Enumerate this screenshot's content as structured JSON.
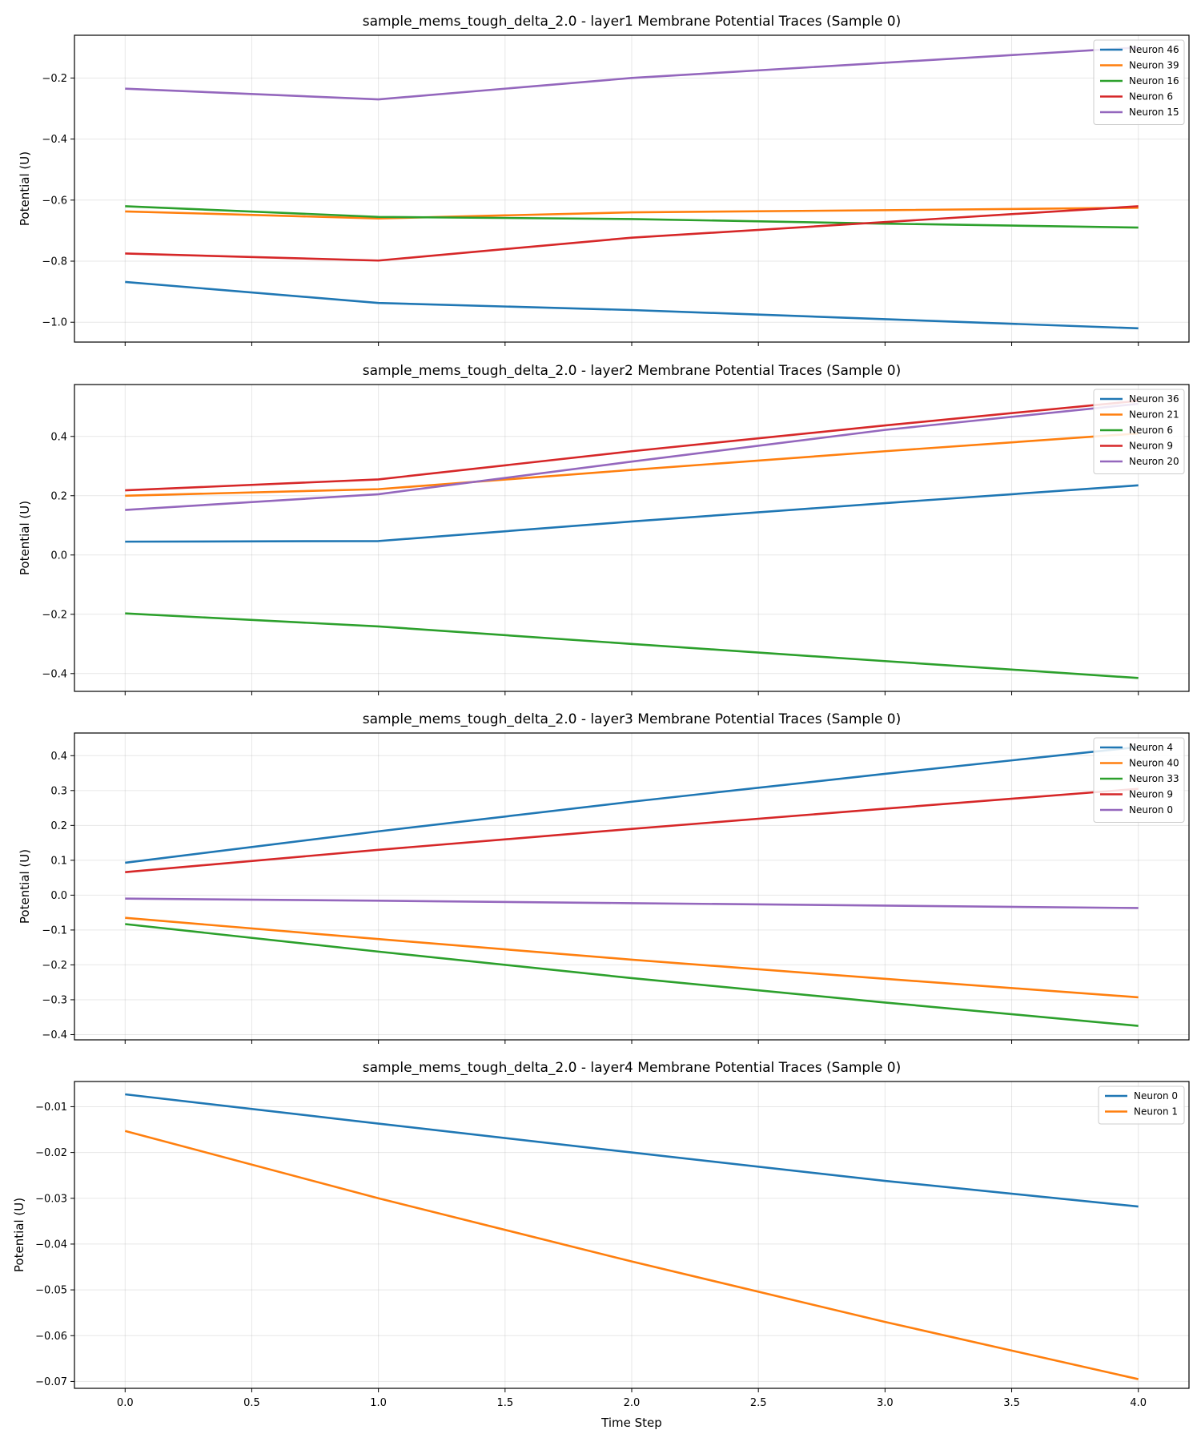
{
  "chart_data": [
    {
      "type": "line",
      "title": "sample_mems_tough_delta_2.0 - layer1 Membrane Potential Traces (Sample 0)",
      "xlabel": "",
      "ylabel": "Potential (U)",
      "xlim": [
        -0.2,
        4.2
      ],
      "ylim": [
        -1.065,
        -0.06
      ],
      "yticks": [
        -1.0,
        -0.8,
        -0.6,
        -0.4,
        -0.2
      ],
      "ytick_labels": [
        "−1.0",
        "−0.8",
        "−0.6",
        "−0.4",
        "−0.2"
      ],
      "xticks": [
        0.0,
        0.5,
        1.0,
        1.5,
        2.0,
        2.5,
        3.0,
        3.5,
        4.0
      ],
      "xtick_labels": [],
      "grid": true,
      "legend_position": "top-right",
      "x": [
        0,
        1,
        2,
        3,
        4
      ],
      "series": [
        {
          "name": "Neuron 46",
          "color": "#1f77b4",
          "values": [
            -0.868,
            -0.937,
            -0.96,
            -0.99,
            -1.02
          ]
        },
        {
          "name": "Neuron 39",
          "color": "#ff7f0e",
          "values": [
            -0.637,
            -0.66,
            -0.64,
            -0.633,
            -0.625
          ]
        },
        {
          "name": "Neuron 16",
          "color": "#2ca02c",
          "values": [
            -0.62,
            -0.655,
            -0.662,
            -0.677,
            -0.69
          ]
        },
        {
          "name": "Neuron 6",
          "color": "#d62728",
          "values": [
            -0.775,
            -0.798,
            -0.723,
            -0.672,
            -0.62
          ]
        },
        {
          "name": "Neuron 15",
          "color": "#9467bd",
          "values": [
            -0.235,
            -0.27,
            -0.2,
            -0.15,
            -0.1
          ]
        }
      ]
    },
    {
      "type": "line",
      "title": "sample_mems_tough_delta_2.0 - layer2 Membrane Potential Traces (Sample 0)",
      "xlabel": "",
      "ylabel": "Potential (U)",
      "xlim": [
        -0.2,
        4.2
      ],
      "ylim": [
        -0.46,
        0.575
      ],
      "yticks": [
        -0.4,
        -0.2,
        0.0,
        0.2,
        0.4
      ],
      "ytick_labels": [
        "−0.4",
        "−0.2",
        "0.0",
        "0.2",
        "0.4"
      ],
      "xticks": [
        0.0,
        0.5,
        1.0,
        1.5,
        2.0,
        2.5,
        3.0,
        3.5,
        4.0
      ],
      "xtick_labels": [],
      "grid": true,
      "legend_position": "top-right",
      "x": [
        0,
        1,
        2,
        3,
        4
      ],
      "series": [
        {
          "name": "Neuron 36",
          "color": "#1f77b4",
          "values": [
            0.045,
            0.047,
            0.113,
            0.175,
            0.235
          ]
        },
        {
          "name": "Neuron 21",
          "color": "#ff7f0e",
          "values": [
            0.2,
            0.222,
            0.287,
            0.35,
            0.41
          ]
        },
        {
          "name": "Neuron 6",
          "color": "#2ca02c",
          "values": [
            -0.197,
            -0.241,
            -0.3,
            -0.358,
            -0.415
          ]
        },
        {
          "name": "Neuron 9",
          "color": "#d62728",
          "values": [
            0.218,
            0.255,
            0.35,
            0.437,
            0.52
          ]
        },
        {
          "name": "Neuron 20",
          "color": "#9467bd",
          "values": [
            0.152,
            0.205,
            0.315,
            0.422,
            0.51
          ]
        }
      ]
    },
    {
      "type": "line",
      "title": "sample_mems_tough_delta_2.0 - layer3 Membrane Potential Traces (Sample 0)",
      "xlabel": "",
      "ylabel": "Potential (U)",
      "xlim": [
        -0.2,
        4.2
      ],
      "ylim": [
        -0.415,
        0.465
      ],
      "yticks": [
        -0.4,
        -0.3,
        -0.2,
        -0.1,
        0.0,
        0.1,
        0.2,
        0.3,
        0.4
      ],
      "ytick_labels": [
        "−0.4",
        "−0.3",
        "−0.2",
        "−0.1",
        "0.0",
        "0.1",
        "0.2",
        "0.3",
        "0.4"
      ],
      "xticks": [
        0.0,
        0.5,
        1.0,
        1.5,
        2.0,
        2.5,
        3.0,
        3.5,
        4.0
      ],
      "xtick_labels": [],
      "grid": true,
      "legend_position": "top-right",
      "x": [
        0,
        1,
        2,
        3,
        4
      ],
      "series": [
        {
          "name": "Neuron 4",
          "color": "#1f77b4",
          "values": [
            0.093,
            0.183,
            0.268,
            0.348,
            0.425
          ]
        },
        {
          "name": "Neuron 40",
          "color": "#ff7f0e",
          "values": [
            -0.065,
            -0.126,
            -0.185,
            -0.24,
            -0.293
          ]
        },
        {
          "name": "Neuron 33",
          "color": "#2ca02c",
          "values": [
            -0.083,
            -0.162,
            -0.238,
            -0.308,
            -0.375
          ]
        },
        {
          "name": "Neuron 9",
          "color": "#d62728",
          "values": [
            0.066,
            0.13,
            0.19,
            0.248,
            0.305
          ]
        },
        {
          "name": "Neuron 0",
          "color": "#9467bd",
          "values": [
            -0.01,
            -0.016,
            -0.023,
            -0.03,
            -0.037
          ]
        }
      ]
    },
    {
      "type": "line",
      "title": "sample_mems_tough_delta_2.0 - layer4 Membrane Potential Traces (Sample 0)",
      "xlabel": "Time Step",
      "ylabel": "Potential (U)",
      "xlim": [
        -0.2,
        4.2
      ],
      "ylim": [
        -0.0715,
        -0.0045
      ],
      "yticks": [
        -0.07,
        -0.06,
        -0.05,
        -0.04,
        -0.03,
        -0.02,
        -0.01
      ],
      "ytick_labels": [
        "−0.07",
        "−0.06",
        "−0.05",
        "−0.04",
        "−0.03",
        "−0.02",
        "−0.01"
      ],
      "xticks": [
        0.0,
        0.5,
        1.0,
        1.5,
        2.0,
        2.5,
        3.0,
        3.5,
        4.0
      ],
      "xtick_labels": [
        "0.0",
        "0.5",
        "1.0",
        "1.5",
        "2.0",
        "2.5",
        "3.0",
        "3.5",
        "4.0"
      ],
      "grid": true,
      "legend_position": "top-right",
      "x": [
        0,
        1,
        2,
        3,
        4
      ],
      "series": [
        {
          "name": "Neuron 0",
          "color": "#1f77b4",
          "values": [
            -0.0073,
            -0.0137,
            -0.02,
            -0.0262,
            -0.0318
          ]
        },
        {
          "name": "Neuron 1",
          "color": "#ff7f0e",
          "values": [
            -0.0153,
            -0.03,
            -0.0438,
            -0.057,
            -0.0695
          ]
        }
      ]
    }
  ]
}
